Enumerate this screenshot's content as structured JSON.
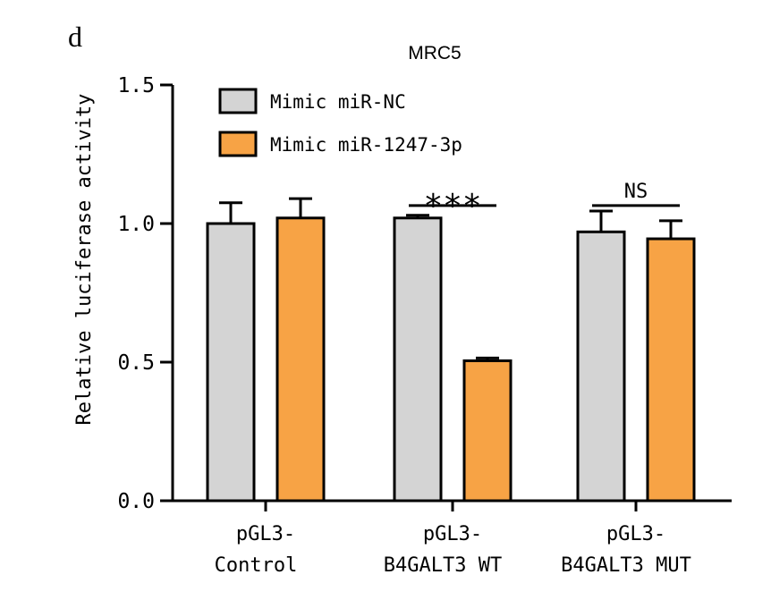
{
  "panel_label": "d",
  "chart_data": {
    "type": "bar",
    "title": "MRC5",
    "xlabel": "",
    "ylabel": "Relative luciferase activity",
    "ylim": [
      0,
      1.5
    ],
    "yticks": [
      "0.0",
      "0.5",
      "1.0",
      "1.5"
    ],
    "ytick_values": [
      0,
      0.5,
      1.0,
      1.5
    ],
    "categories": [
      {
        "line1": "pGL3-",
        "line2": "Control"
      },
      {
        "line1": "pGL3-",
        "line2": "B4GALT3 WT"
      },
      {
        "line1": "pGL3-",
        "line2": "B4GALT3 MUT"
      }
    ],
    "series": [
      {
        "name": "Mimic miR-NC",
        "color": "#d4d4d4",
        "values": [
          1.0,
          1.02,
          0.97
        ],
        "errors": [
          0.075,
          0.01,
          0.075
        ]
      },
      {
        "name": "Mimic miR-1247-3p",
        "color": "#f7a345",
        "values": [
          1.02,
          0.505,
          0.945
        ],
        "errors": [
          0.07,
          0.01,
          0.065
        ]
      }
    ],
    "annotations": [
      {
        "category_index": 1,
        "text": "***",
        "y": 1.065
      },
      {
        "category_index": 2,
        "text": "NS",
        "y": 1.065
      }
    ],
    "legend_position": "top-left"
  }
}
